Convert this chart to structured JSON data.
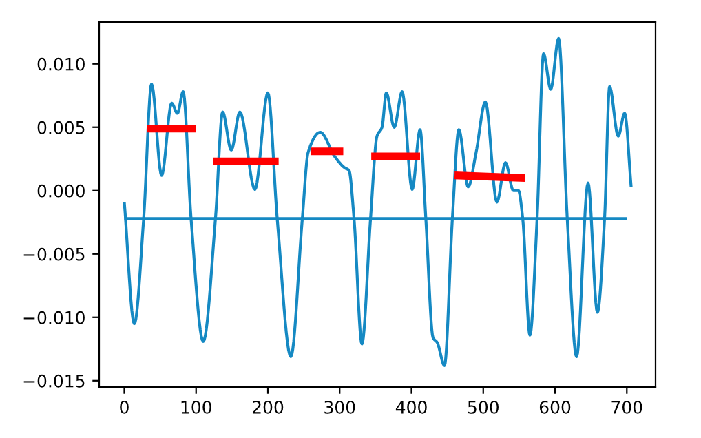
{
  "chart_data": {
    "type": "line",
    "series": [
      {
        "color": "#1589c3",
        "x": [
          0,
          14,
          27,
          38,
          52,
          66,
          74,
          82,
          93,
          110,
          127,
          137,
          149,
          161,
          182,
          200,
          213,
          232,
          248,
          256,
          273,
          293,
          307,
          313,
          320,
          331,
          343,
          352,
          359,
          365,
          376,
          387,
          401,
          412,
          420,
          430,
          436,
          446,
          457,
          466,
          479,
          490,
          503,
          519,
          531,
          542,
          549,
          555,
          565,
          575,
          584,
          594,
          605,
          617,
          630,
          646,
          659,
          669,
          676,
          688,
          697,
          706
        ],
        "values": [
          -0.0009,
          -0.0105,
          -0.0022,
          0.0084,
          0.0012,
          0.0069,
          0.0061,
          0.0078,
          -0.0022,
          -0.0119,
          -0.0022,
          0.0062,
          0.0032,
          0.0062,
          0.0001,
          0.0077,
          -0.0022,
          -0.0131,
          -0.0022,
          0.003,
          0.0046,
          0.0027,
          0.0018,
          0.0016,
          -0.0022,
          -0.0121,
          -0.0022,
          0.0043,
          0.005,
          0.0077,
          0.005,
          0.0078,
          0.0001,
          0.0048,
          -0.0022,
          -0.0116,
          -0.012,
          -0.0138,
          -0.0022,
          0.0048,
          0.0003,
          0.003,
          0.007,
          -0.0009,
          0.0022,
          0.0,
          0.0,
          -0.0022,
          -0.0114,
          -0.0022,
          0.0108,
          0.008,
          0.012,
          -0.0022,
          -0.0131,
          0.0006,
          -0.0096,
          -0.0022,
          0.0082,
          0.0043,
          0.0061,
          0.0003
        ]
      },
      {
        "color": "#1589c3",
        "x": [
          0,
          700
        ],
        "values": [
          -0.0022,
          -0.0022
        ]
      },
      {
        "color": "#ff0000",
        "x": [
          32,
          100
        ],
        "values": [
          0.0049,
          0.0049
        ]
      },
      {
        "color": "#ff0000",
        "x": [
          124,
          215
        ],
        "values": [
          0.0023,
          0.0023
        ]
      },
      {
        "color": "#ff0000",
        "x": [
          260,
          305
        ],
        "values": [
          0.0031,
          0.0031
        ]
      },
      {
        "color": "#ff0000",
        "x": [
          344,
          412
        ],
        "values": [
          0.0027,
          0.0027
        ]
      },
      {
        "color": "#ff0000",
        "x": [
          460,
          558
        ],
        "values": [
          0.0012,
          0.001
        ]
      }
    ],
    "xlim": [
      -35,
      740
    ],
    "xticks": [
      0,
      100,
      200,
      300,
      400,
      500,
      600,
      700
    ],
    "ylim": [
      -0.0155,
      0.0133
    ],
    "yticks": [
      {
        "value": -0.015,
        "label": "−0.015"
      },
      {
        "value": -0.01,
        "label": "−0.010"
      },
      {
        "value": -0.005,
        "label": "−0.005"
      },
      {
        "value": 0,
        "label": "0.000"
      },
      {
        "value": 0.005,
        "label": "0.005"
      },
      {
        "value": 0.01,
        "label": "0.010"
      }
    ],
    "grid": false
  }
}
